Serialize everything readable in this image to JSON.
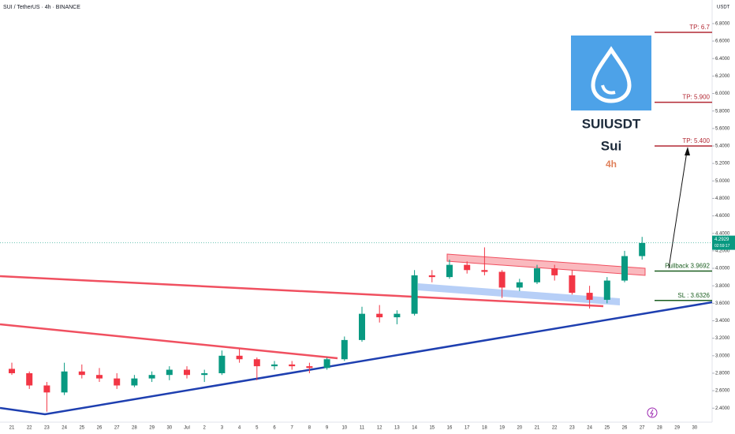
{
  "chart_data": {
    "type": "candlestick",
    "title": "SUI / TetherUS · 4h · BINANCE",
    "currency": "USDT",
    "card": {
      "symbol": "SUIUSDT",
      "name": "Sui",
      "interval": "4h"
    },
    "categories": [
      "21",
      "22",
      "23",
      "24",
      "25",
      "26",
      "27",
      "28",
      "29",
      "30",
      "Jul",
      "2",
      "3",
      "4",
      "5",
      "6",
      "7",
      "8",
      "9",
      "10",
      "11",
      "12",
      "13",
      "14",
      "15",
      "16",
      "17",
      "18",
      "19",
      "20",
      "21",
      "22",
      "23",
      "24",
      "25",
      "26",
      "27",
      "28",
      "29",
      "30"
    ],
    "open": [
      2.85,
      2.8,
      2.66,
      2.58,
      2.82,
      2.78,
      2.74,
      2.66,
      2.74,
      2.78,
      2.84,
      2.78,
      2.8,
      3.0,
      2.96,
      2.88,
      2.9,
      2.88,
      2.86,
      2.96,
      3.18,
      3.48,
      3.44,
      3.48,
      3.92,
      3.9,
      4.04,
      3.98,
      3.96,
      3.78,
      3.84,
      4.0,
      3.92,
      3.72,
      3.64,
      3.86,
      4.14,
      null,
      null,
      null
    ],
    "high": [
      2.92,
      2.82,
      2.7,
      2.92,
      2.9,
      2.86,
      2.8,
      2.78,
      2.82,
      2.88,
      2.88,
      2.84,
      3.06,
      3.08,
      2.98,
      2.94,
      2.94,
      2.92,
      2.98,
      3.22,
      3.56,
      3.58,
      3.52,
      3.98,
      3.98,
      4.1,
      4.08,
      4.24,
      3.98,
      3.88,
      4.04,
      4.04,
      3.98,
      3.8,
      3.9,
      4.2,
      4.36,
      null,
      null,
      null
    ],
    "low": [
      2.78,
      2.62,
      2.36,
      2.55,
      2.74,
      2.7,
      2.62,
      2.64,
      2.7,
      2.72,
      2.74,
      2.7,
      2.78,
      2.92,
      2.72,
      2.84,
      2.84,
      2.8,
      2.84,
      2.94,
      3.16,
      3.38,
      3.36,
      3.46,
      3.84,
      3.88,
      3.94,
      3.92,
      3.66,
      3.74,
      3.82,
      3.86,
      3.7,
      3.54,
      3.6,
      3.84,
      4.1,
      null,
      null,
      null
    ],
    "close": [
      2.8,
      2.66,
      2.58,
      2.82,
      2.78,
      2.74,
      2.66,
      2.74,
      2.78,
      2.84,
      2.78,
      2.8,
      3.0,
      2.96,
      2.88,
      2.9,
      2.88,
      2.86,
      2.96,
      3.18,
      3.48,
      3.44,
      3.48,
      3.92,
      3.9,
      4.04,
      3.98,
      3.96,
      3.78,
      3.84,
      4.0,
      3.92,
      3.72,
      3.64,
      3.86,
      4.14,
      4.29,
      null,
      null,
      null
    ],
    "up_color": "#089981",
    "down_color": "#f23645",
    "ylim": [
      2.24,
      7.07
    ],
    "yticks": [
      {
        "value": 2.4,
        "label": "2.4000"
      },
      {
        "value": 2.6,
        "label": "2.6000"
      },
      {
        "value": 2.8,
        "label": "2.8000"
      },
      {
        "value": 3.0,
        "label": "3.0000"
      },
      {
        "value": 3.2,
        "label": "3.2000"
      },
      {
        "value": 3.4,
        "label": "3.4000"
      },
      {
        "value": 3.6,
        "label": "3.6000"
      },
      {
        "value": 3.8,
        "label": "3.8000"
      },
      {
        "value": 4.0,
        "label": "4.0000"
      },
      {
        "value": 4.2,
        "label": "4.2000"
      },
      {
        "value": 4.4,
        "label": "4.4000"
      },
      {
        "value": 4.6,
        "label": "4.6000"
      },
      {
        "value": 4.8,
        "label": "4.8000"
      },
      {
        "value": 5.0,
        "label": "5.0000"
      },
      {
        "value": 5.2,
        "label": "5.2000"
      },
      {
        "value": 5.4,
        "label": "5.4000"
      },
      {
        "value": 5.6,
        "label": "5.6000"
      },
      {
        "value": 5.8,
        "label": "5.8000"
      },
      {
        "value": 6.0,
        "label": "6.0000"
      },
      {
        "value": 6.2,
        "label": "6.2000"
      },
      {
        "value": 6.4,
        "label": "6.4000"
      },
      {
        "value": 6.6,
        "label": "6.6000"
      },
      {
        "value": 6.8,
        "label": "6.8000"
      }
    ],
    "last_price": {
      "value": 4.2929,
      "label": "4.2929",
      "countdown": "02:59:17"
    },
    "levels": [
      {
        "label": "TP: 6.7",
        "value": 6.7,
        "color": "#b22833"
      },
      {
        "label": "TP: 5.900",
        "value": 5.9,
        "color": "#b22833"
      },
      {
        "label": "TP: 5.400",
        "value": 5.4,
        "color": "#b22833"
      },
      {
        "label": "Pullback 3.9692",
        "value": 3.9692,
        "color": "#1b5e20"
      },
      {
        "label": "SL : 3.6326",
        "value": 3.6326,
        "color": "#1b5e20"
      }
    ]
  }
}
